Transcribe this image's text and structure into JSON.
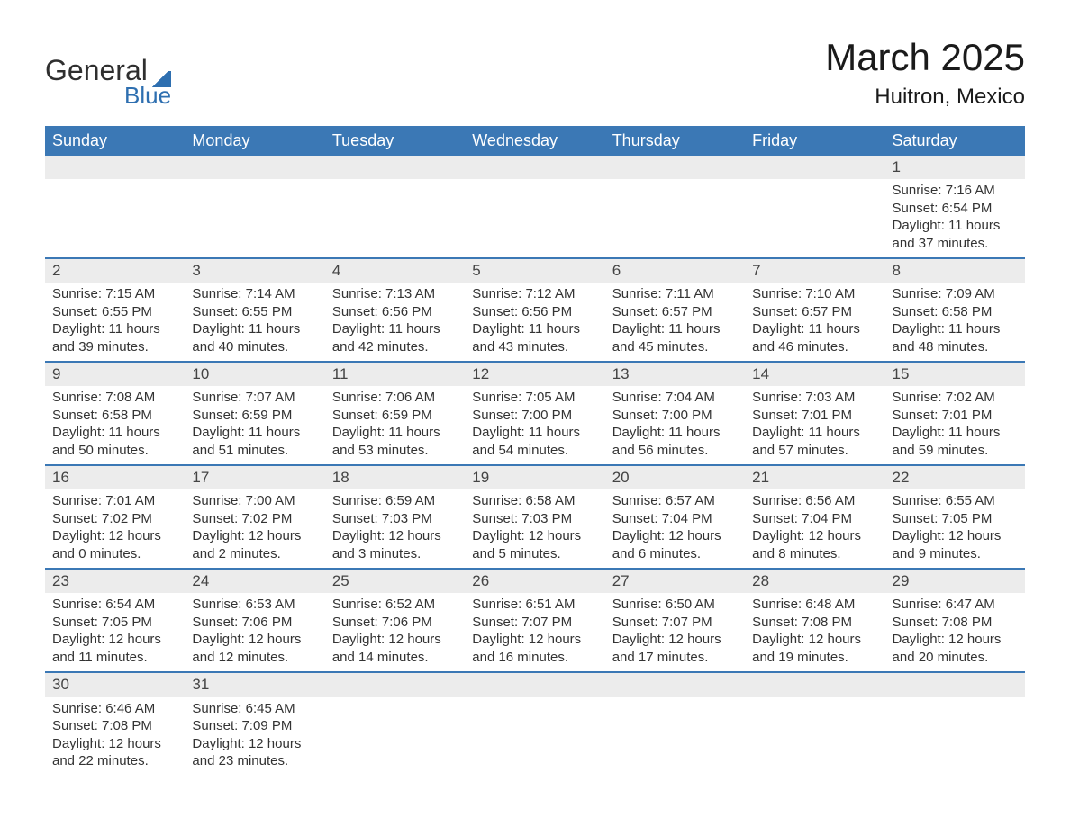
{
  "brand": {
    "word1": "General",
    "word2": "Blue"
  },
  "title": "March 2025",
  "location": "Huitron, Mexico",
  "colors": {
    "header_bg": "#3b78b5",
    "header_text": "#ffffff",
    "daynum_bg": "#ececec",
    "row_border": "#3b78b5",
    "body_text": "#333333",
    "page_bg": "#ffffff",
    "logo_accent": "#2e6fb0"
  },
  "typography": {
    "month_title_pt": 42,
    "location_pt": 24,
    "header_cell_pt": 18,
    "daynum_pt": 17,
    "detail_pt": 15
  },
  "layout": {
    "columns": 7,
    "start_day_index": 6,
    "days_in_month": 31
  },
  "day_headers": [
    "Sunday",
    "Monday",
    "Tuesday",
    "Wednesday",
    "Thursday",
    "Friday",
    "Saturday"
  ],
  "labels": {
    "sunrise": "Sunrise: ",
    "sunset": "Sunset: ",
    "daylight": "Daylight: "
  },
  "days": [
    {
      "n": 1,
      "sunrise": "7:16 AM",
      "sunset": "6:54 PM",
      "daylight": "11 hours and 37 minutes."
    },
    {
      "n": 2,
      "sunrise": "7:15 AM",
      "sunset": "6:55 PM",
      "daylight": "11 hours and 39 minutes."
    },
    {
      "n": 3,
      "sunrise": "7:14 AM",
      "sunset": "6:55 PM",
      "daylight": "11 hours and 40 minutes."
    },
    {
      "n": 4,
      "sunrise": "7:13 AM",
      "sunset": "6:56 PM",
      "daylight": "11 hours and 42 minutes."
    },
    {
      "n": 5,
      "sunrise": "7:12 AM",
      "sunset": "6:56 PM",
      "daylight": "11 hours and 43 minutes."
    },
    {
      "n": 6,
      "sunrise": "7:11 AM",
      "sunset": "6:57 PM",
      "daylight": "11 hours and 45 minutes."
    },
    {
      "n": 7,
      "sunrise": "7:10 AM",
      "sunset": "6:57 PM",
      "daylight": "11 hours and 46 minutes."
    },
    {
      "n": 8,
      "sunrise": "7:09 AM",
      "sunset": "6:58 PM",
      "daylight": "11 hours and 48 minutes."
    },
    {
      "n": 9,
      "sunrise": "7:08 AM",
      "sunset": "6:58 PM",
      "daylight": "11 hours and 50 minutes."
    },
    {
      "n": 10,
      "sunrise": "7:07 AM",
      "sunset": "6:59 PM",
      "daylight": "11 hours and 51 minutes."
    },
    {
      "n": 11,
      "sunrise": "7:06 AM",
      "sunset": "6:59 PM",
      "daylight": "11 hours and 53 minutes."
    },
    {
      "n": 12,
      "sunrise": "7:05 AM",
      "sunset": "7:00 PM",
      "daylight": "11 hours and 54 minutes."
    },
    {
      "n": 13,
      "sunrise": "7:04 AM",
      "sunset": "7:00 PM",
      "daylight": "11 hours and 56 minutes."
    },
    {
      "n": 14,
      "sunrise": "7:03 AM",
      "sunset": "7:01 PM",
      "daylight": "11 hours and 57 minutes."
    },
    {
      "n": 15,
      "sunrise": "7:02 AM",
      "sunset": "7:01 PM",
      "daylight": "11 hours and 59 minutes."
    },
    {
      "n": 16,
      "sunrise": "7:01 AM",
      "sunset": "7:02 PM",
      "daylight": "12 hours and 0 minutes."
    },
    {
      "n": 17,
      "sunrise": "7:00 AM",
      "sunset": "7:02 PM",
      "daylight": "12 hours and 2 minutes."
    },
    {
      "n": 18,
      "sunrise": "6:59 AM",
      "sunset": "7:03 PM",
      "daylight": "12 hours and 3 minutes."
    },
    {
      "n": 19,
      "sunrise": "6:58 AM",
      "sunset": "7:03 PM",
      "daylight": "12 hours and 5 minutes."
    },
    {
      "n": 20,
      "sunrise": "6:57 AM",
      "sunset": "7:04 PM",
      "daylight": "12 hours and 6 minutes."
    },
    {
      "n": 21,
      "sunrise": "6:56 AM",
      "sunset": "7:04 PM",
      "daylight": "12 hours and 8 minutes."
    },
    {
      "n": 22,
      "sunrise": "6:55 AM",
      "sunset": "7:05 PM",
      "daylight": "12 hours and 9 minutes."
    },
    {
      "n": 23,
      "sunrise": "6:54 AM",
      "sunset": "7:05 PM",
      "daylight": "12 hours and 11 minutes."
    },
    {
      "n": 24,
      "sunrise": "6:53 AM",
      "sunset": "7:06 PM",
      "daylight": "12 hours and 12 minutes."
    },
    {
      "n": 25,
      "sunrise": "6:52 AM",
      "sunset": "7:06 PM",
      "daylight": "12 hours and 14 minutes."
    },
    {
      "n": 26,
      "sunrise": "6:51 AM",
      "sunset": "7:07 PM",
      "daylight": "12 hours and 16 minutes."
    },
    {
      "n": 27,
      "sunrise": "6:50 AM",
      "sunset": "7:07 PM",
      "daylight": "12 hours and 17 minutes."
    },
    {
      "n": 28,
      "sunrise": "6:48 AM",
      "sunset": "7:08 PM",
      "daylight": "12 hours and 19 minutes."
    },
    {
      "n": 29,
      "sunrise": "6:47 AM",
      "sunset": "7:08 PM",
      "daylight": "12 hours and 20 minutes."
    },
    {
      "n": 30,
      "sunrise": "6:46 AM",
      "sunset": "7:08 PM",
      "daylight": "12 hours and 22 minutes."
    },
    {
      "n": 31,
      "sunrise": "6:45 AM",
      "sunset": "7:09 PM",
      "daylight": "12 hours and 23 minutes."
    }
  ]
}
